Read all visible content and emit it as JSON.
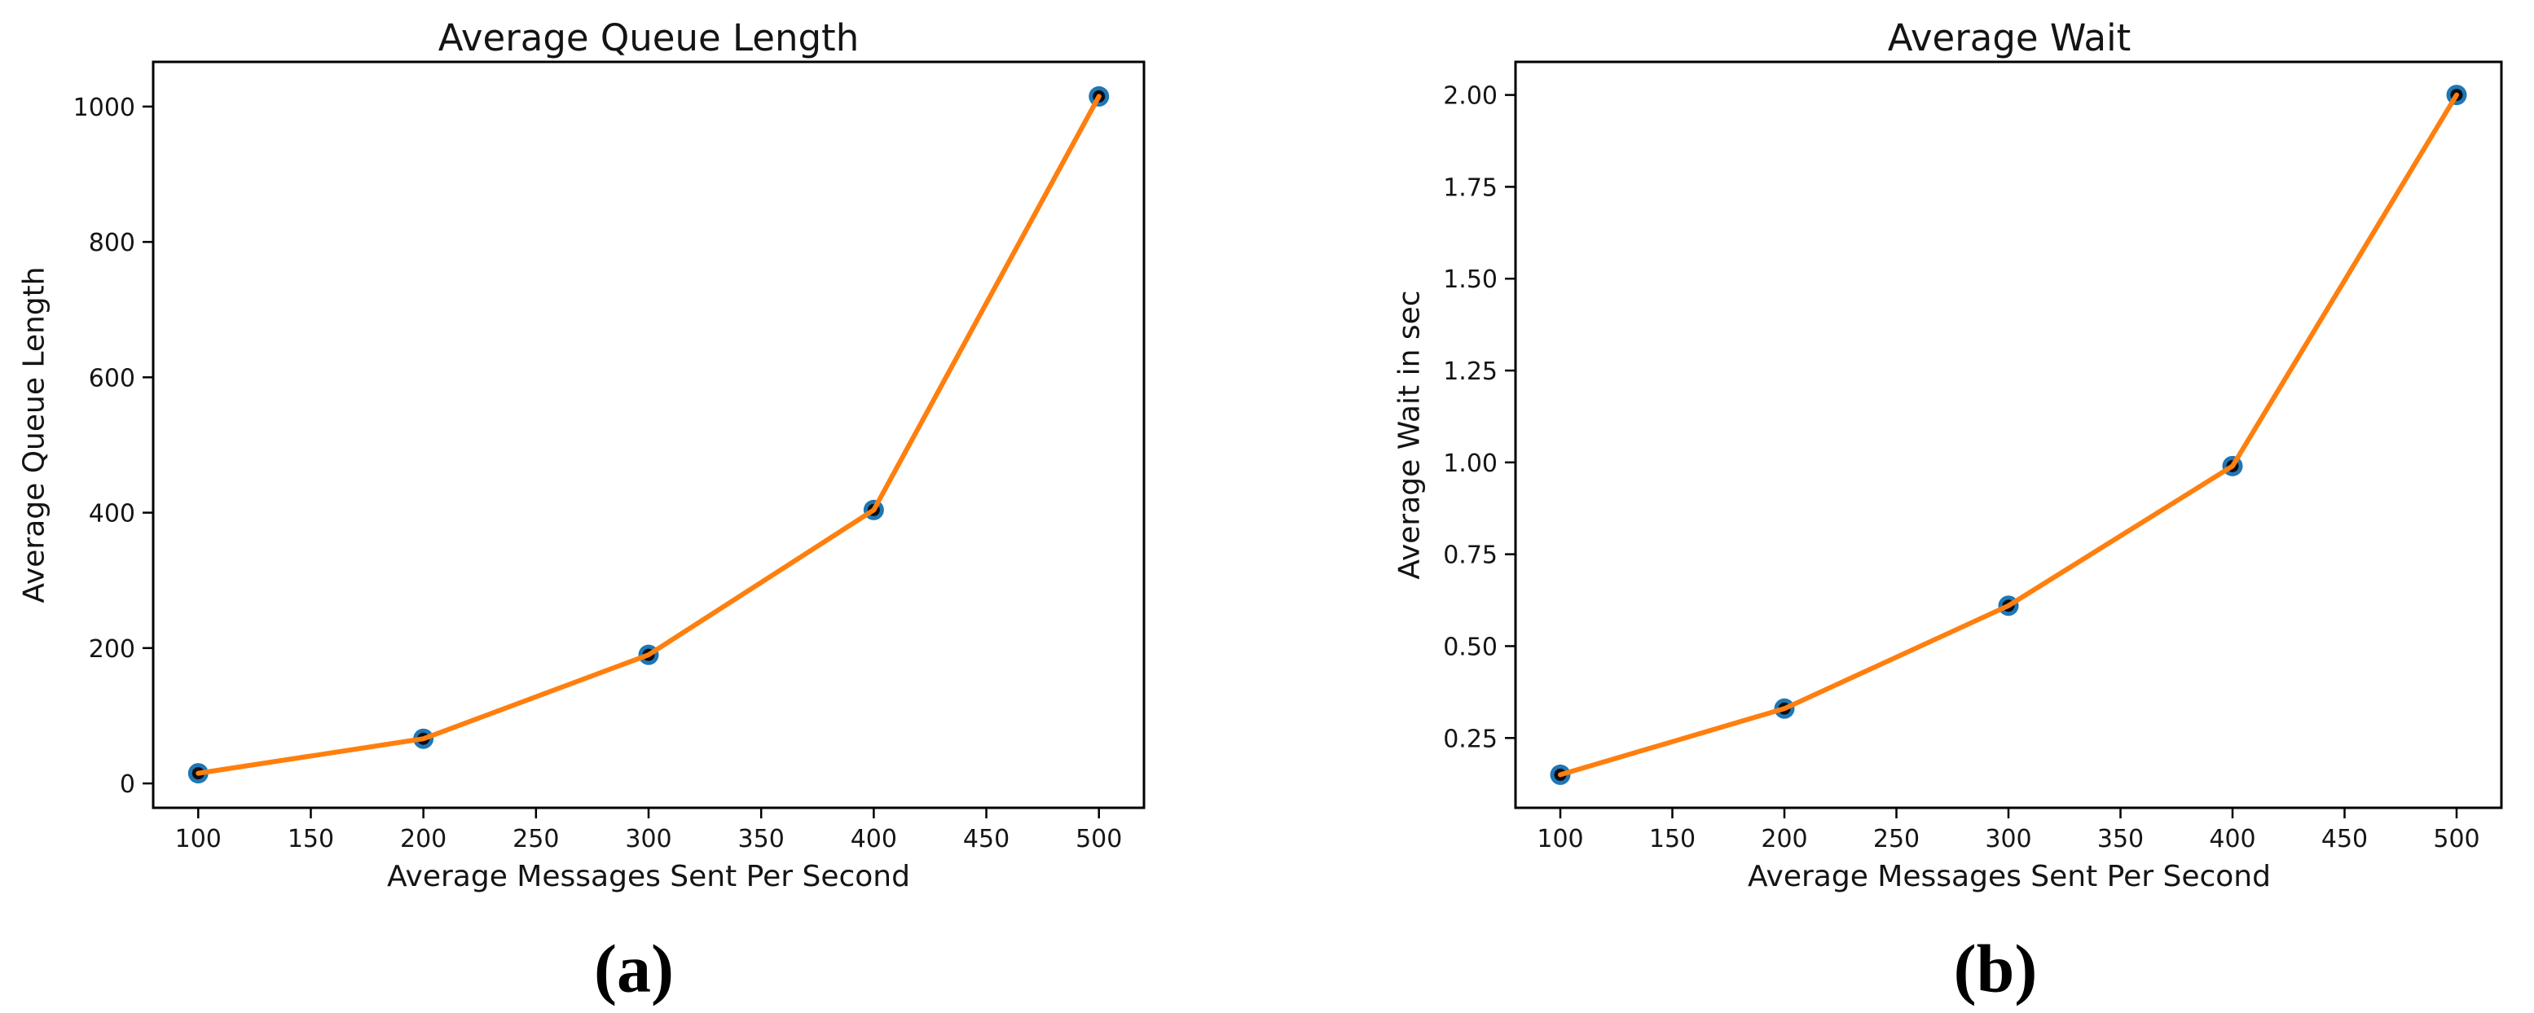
{
  "page": {
    "background": "#ffffff"
  },
  "colors": {
    "line": "#ff7f0e",
    "marker_outer": "#1f77b4",
    "marker_inner": "#0d0d12",
    "axis": "#000000",
    "tick_text": "#151515"
  },
  "chart_data": [
    {
      "id": "a",
      "type": "line",
      "title": "Average Queue Length",
      "xlabel": "Average Messages Sent Per Second",
      "ylabel": "Average Queue Length",
      "caption": "(a)",
      "x": [
        100,
        200,
        300,
        400,
        500
      ],
      "y": [
        15,
        66,
        190,
        404,
        1015
      ],
      "xlim": [
        80,
        520
      ],
      "ylim": [
        -36,
        1066
      ],
      "xticks": [
        100,
        150,
        200,
        250,
        300,
        350,
        400,
        450,
        500
      ],
      "xtick_labels": [
        "100",
        "150",
        "200",
        "250",
        "300",
        "350",
        "400",
        "450",
        "500"
      ],
      "yticks": [
        0,
        200,
        400,
        600,
        800,
        1000
      ],
      "ytick_labels": [
        "0",
        "200",
        "400",
        "600",
        "800",
        "1000"
      ],
      "grid": false,
      "legend": null,
      "line_color": "#ff7f0e",
      "marker": {
        "shape": "circle",
        "outer_color": "#1f77b4",
        "inner_color": "#0d0d12"
      }
    },
    {
      "id": "b",
      "type": "line",
      "title": "Average Wait",
      "xlabel": "Average Messages Sent Per Second",
      "ylabel": "Average Wait in sec",
      "caption": "(b)",
      "x": [
        100,
        200,
        300,
        400,
        500
      ],
      "y": [
        0.15,
        0.33,
        0.61,
        0.99,
        2.0
      ],
      "xlim": [
        80,
        520
      ],
      "ylim": [
        0.06,
        2.09
      ],
      "xticks": [
        100,
        150,
        200,
        250,
        300,
        350,
        400,
        450,
        500
      ],
      "xtick_labels": [
        "100",
        "150",
        "200",
        "250",
        "300",
        "350",
        "400",
        "450",
        "500"
      ],
      "yticks": [
        0.25,
        0.5,
        0.75,
        1.0,
        1.25,
        1.5,
        1.75,
        2.0
      ],
      "ytick_labels": [
        "0.25",
        "0.50",
        "0.75",
        "1.00",
        "1.25",
        "1.50",
        "1.75",
        "2.00"
      ],
      "grid": false,
      "legend": null,
      "line_color": "#ff7f0e",
      "marker": {
        "shape": "circle",
        "outer_color": "#1f77b4",
        "inner_color": "#0d0d12"
      }
    }
  ]
}
